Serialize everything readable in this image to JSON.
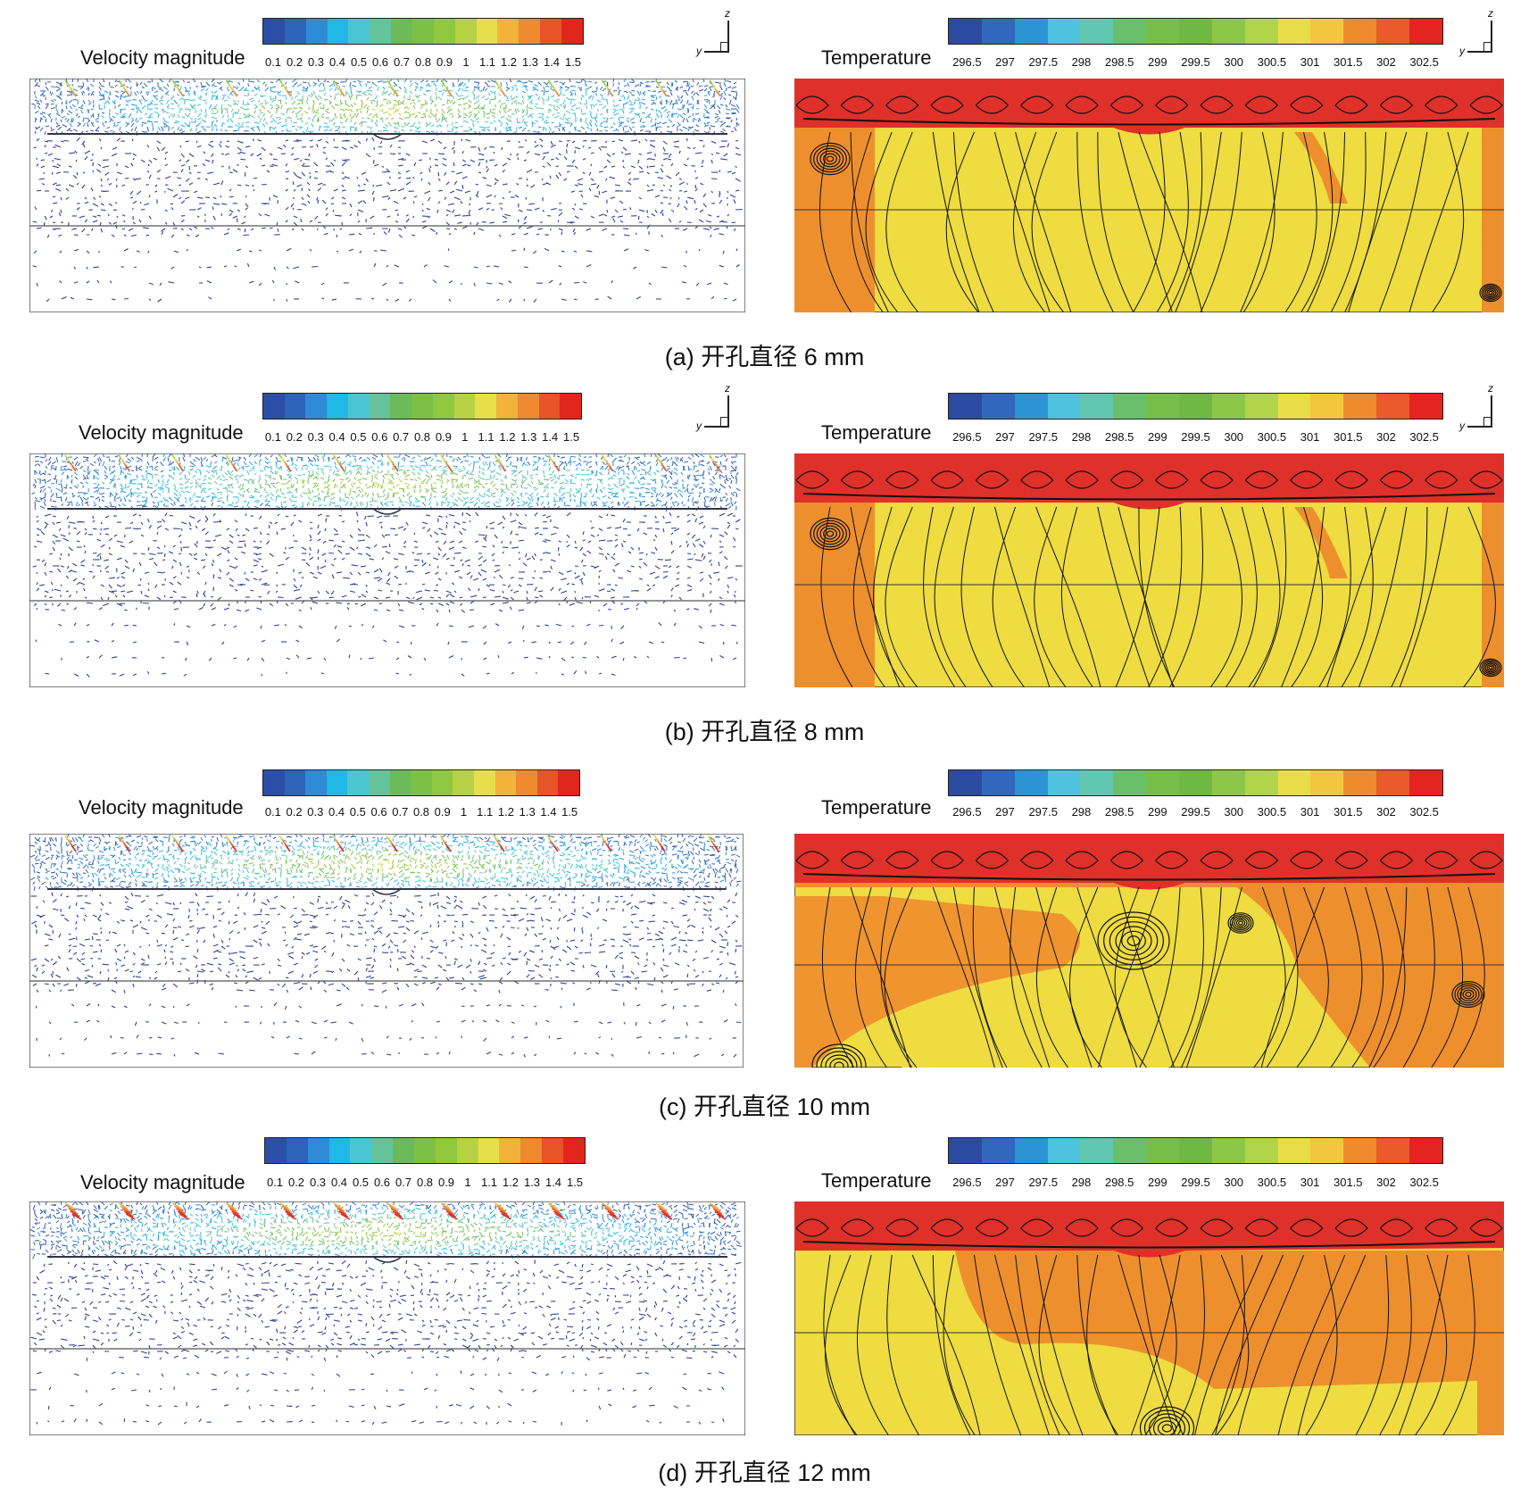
{
  "colors": {
    "velocity_scale": [
      "#2b4fa8",
      "#2d63b8",
      "#2f8bd6",
      "#21b7e6",
      "#48c7d3",
      "#64c39a",
      "#6cba5a",
      "#7cc143",
      "#90c83e",
      "#b6d244",
      "#e6df4b",
      "#f3b23a",
      "#ef8a2f",
      "#e85427",
      "#e1261d"
    ],
    "temperature_scale": [
      "#2d4aa3",
      "#3167bd",
      "#2c94d4",
      "#4ec3e0",
      "#60c7b0",
      "#6abf6c",
      "#76be48",
      "#6fb844",
      "#8dc747",
      "#b1d44a",
      "#e9dd47",
      "#f3c63f",
      "#f08b2d",
      "#ea5a2a",
      "#e3241f"
    ],
    "velocity_background": "#ffffff",
    "vector_color": "#2a3f95",
    "hot_red": "#e0302a",
    "warm_orange": "#ee8f2e",
    "mid_yellow": "#eedc40",
    "streamline": "#111111"
  },
  "velocity_legend": {
    "title": "Velocity magnitude",
    "ticks": [
      "0.1",
      "0.2",
      "0.3",
      "0.4",
      "0.5",
      "0.6",
      "0.7",
      "0.8",
      "0.9",
      "1",
      "1.1",
      "1.2",
      "1.3",
      "1.4",
      "1.5"
    ]
  },
  "temperature_legend": {
    "title": "Temperature",
    "ticks": [
      "296.5",
      "297",
      "297.5",
      "298",
      "298.5",
      "299",
      "299.5",
      "300",
      "300.5",
      "301",
      "301.5",
      "302",
      "302.5"
    ]
  },
  "axis_labels": {
    "z": "z",
    "y": "y"
  },
  "panels": [
    {
      "caption": "(a) 开孔直径 6 mm",
      "show_triad": true
    },
    {
      "caption": "(b) 开孔直径 8 mm",
      "show_triad": true
    },
    {
      "caption": "(c) 开孔直径 10 mm",
      "show_triad": false
    },
    {
      "caption": "(d) 开孔直径 12 mm",
      "show_triad": false
    }
  ]
}
